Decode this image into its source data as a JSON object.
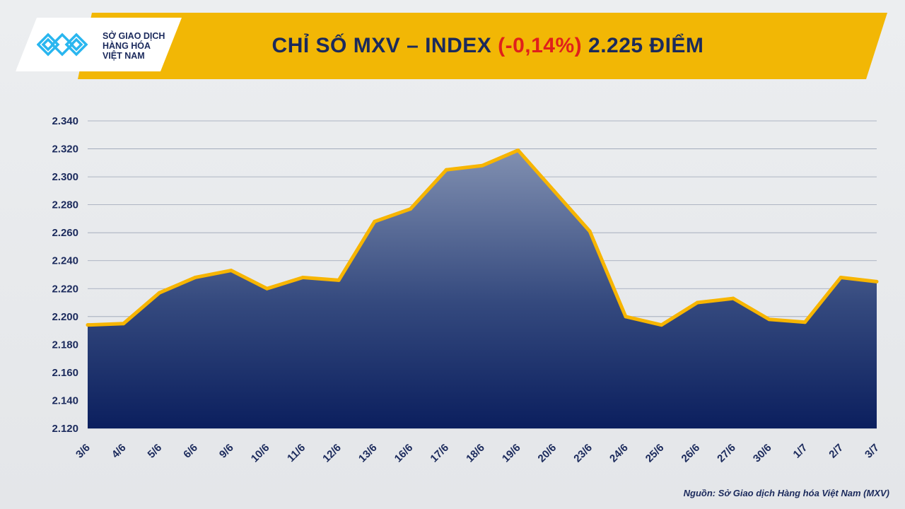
{
  "header": {
    "title_prefix": "CHỈ SỐ MXV – INDEX",
    "title_change": "(-0,14%)",
    "title_suffix": "2.225 ĐIỂM",
    "logo_lines": [
      "SỞ GIAO DỊCH",
      "HÀNG HÓA",
      "VIỆT NAM"
    ],
    "logo_tm": "™"
  },
  "source": "Nguồn: Sở Giao dịch Hàng hóa Việt Nam (MXV)",
  "colors": {
    "line": "#f7b500",
    "fill_top": "#7f8fb0",
    "fill_bottom": "#0d2260",
    "banner": "#f2b705",
    "negative": "#e0201b"
  },
  "chart_data": {
    "type": "area",
    "title": "CHỈ SỐ MXV – INDEX (-0,14%) 2.225 ĐIỂM",
    "categories": [
      "3/6",
      "4/6",
      "5/6",
      "6/6",
      "9/6",
      "10/6",
      "11/6",
      "12/6",
      "13/6",
      "16/6",
      "17/6",
      "18/6",
      "19/6",
      "20/6",
      "23/6",
      "24/6",
      "25/6",
      "26/6",
      "27/6",
      "30/6",
      "1/7",
      "2/7",
      "3/7"
    ],
    "values": [
      2194,
      2195,
      2217,
      2228,
      2233,
      2220,
      2228,
      2226,
      2268,
      2277,
      2305,
      2308,
      2319,
      2290,
      2261,
      2200,
      2194,
      2210,
      2213,
      2198,
      2196,
      2228,
      2225
    ],
    "ylim": [
      2120,
      2340
    ],
    "yticks": [
      "2.120",
      "2.140",
      "2.160",
      "2.180",
      "2.200",
      "2.220",
      "2.240",
      "2.260",
      "2.280",
      "2.300",
      "2.320",
      "2.340"
    ],
    "xlabel": "",
    "ylabel": "",
    "grid": true
  }
}
